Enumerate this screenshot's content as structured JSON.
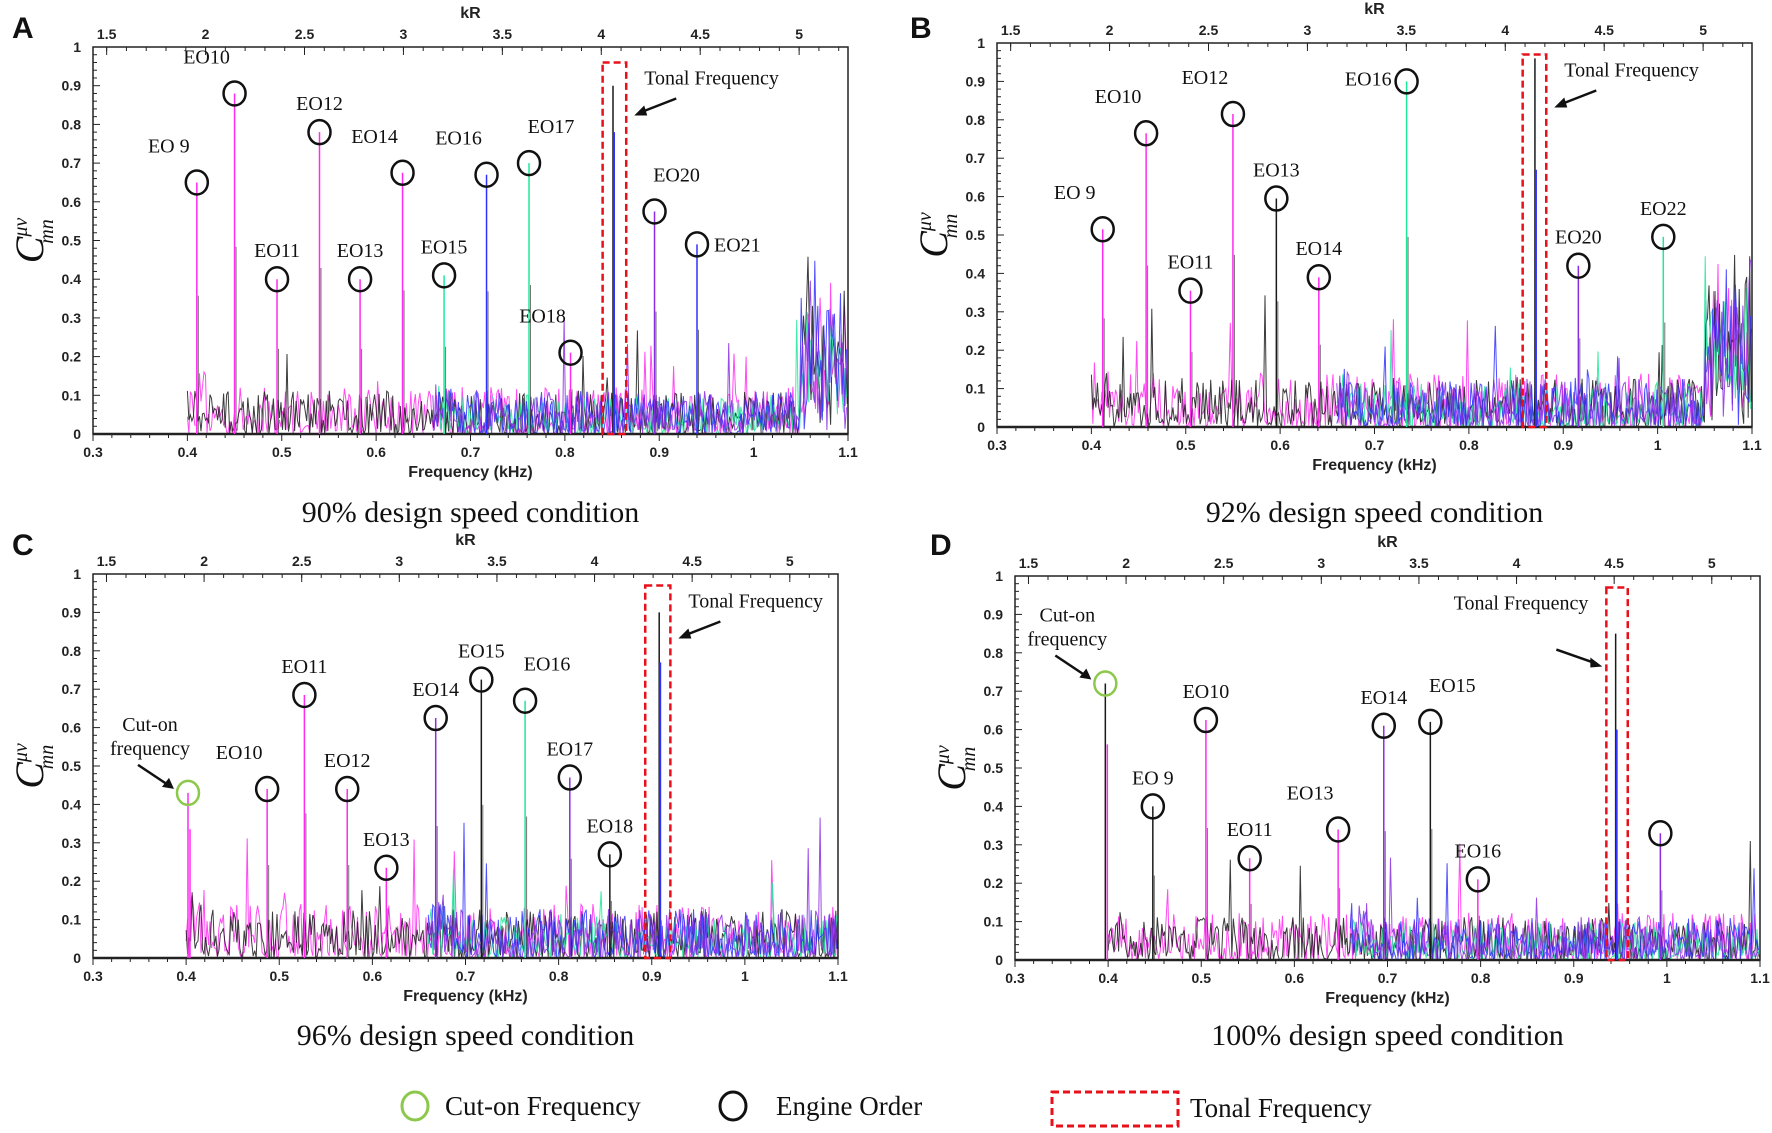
{
  "legend": {
    "cut_on": "Cut-on Frequency",
    "engine_order": "Engine Order",
    "tonal": "Tonal Frequency",
    "colors": {
      "cut_on": "#8cc84b",
      "engine_order": "#111111",
      "tonal": "#e8101a"
    }
  },
  "series_colors": {
    "magenta": "#ff2bf0",
    "black": "#1a1a1a",
    "green": "#1fe89a",
    "blue": "#3030ff",
    "purple": "#8a2be2"
  },
  "chart_data": [
    {
      "type": "line",
      "panel": "A",
      "caption": "90% design speed condition",
      "xlabel": "Frequency (kHz)",
      "x2label": "kR",
      "ylabel": "C_mn^μν",
      "xlim": [
        0.3,
        1.1
      ],
      "ylim": [
        0,
        1
      ],
      "xticks": [
        "0.3",
        "0.4",
        "0.5",
        "0.6",
        "0.7",
        "0.8",
        "0.9",
        "1",
        "1.1"
      ],
      "yticks": [
        "0",
        "0.1",
        "0.2",
        "0.3",
        "0.4",
        "0.5",
        "0.6",
        "0.7",
        "0.8",
        "0.9",
        "1"
      ],
      "kr_ticks": [
        "1.5",
        "2",
        "2.5",
        "3",
        "3.5",
        "4",
        "4.5",
        "5"
      ],
      "kr_per_khz": 4.77,
      "noise": {
        "start": 0.4,
        "late_start": 0.66,
        "level": 0.07,
        "bump_start": 1.05,
        "bump_level": 0.4
      },
      "peaks": [
        {
          "label": "EO 9",
          "f": 0.41,
          "v": 0.65,
          "color": "magenta",
          "pos": "above-left"
        },
        {
          "label": "EO10",
          "f": 0.45,
          "v": 0.88,
          "color": "magenta",
          "pos": "above-left"
        },
        {
          "label": "EO11",
          "f": 0.495,
          "v": 0.4,
          "color": "magenta",
          "pos": "above"
        },
        {
          "label": "EO12",
          "f": 0.54,
          "v": 0.78,
          "color": "magenta",
          "pos": "above"
        },
        {
          "label": "EO13",
          "f": 0.583,
          "v": 0.4,
          "color": "magenta",
          "pos": "above"
        },
        {
          "label": "EO14",
          "f": 0.628,
          "v": 0.675,
          "color": "magenta",
          "pos": "above-left"
        },
        {
          "label": "EO15",
          "f": 0.672,
          "v": 0.41,
          "color": "green",
          "pos": "above"
        },
        {
          "label": "EO16",
          "f": 0.717,
          "v": 0.67,
          "color": "blue",
          "pos": "above-left"
        },
        {
          "label": "EO17",
          "f": 0.762,
          "v": 0.7,
          "color": "green",
          "pos": "above-right"
        },
        {
          "label": "EO18",
          "f": 0.806,
          "v": 0.21,
          "color": "magenta",
          "pos": "above-left"
        },
        {
          "label": "EO20",
          "f": 0.895,
          "v": 0.575,
          "color": "purple",
          "pos": "above-right"
        },
        {
          "label": "EO21",
          "f": 0.94,
          "v": 0.49,
          "color": "blue",
          "pos": "right"
        }
      ],
      "cut_on": null,
      "tonal": {
        "label": "Tonal Frequency",
        "f_range": [
          0.84,
          0.865
        ],
        "f": 0.851,
        "v": 0.9,
        "v2": 0.78,
        "box_top": 0.96,
        "label_side": "right"
      }
    },
    {
      "type": "line",
      "panel": "B",
      "caption": "92% design speed condition",
      "xlabel": "Frequency (kHz)",
      "x2label": "kR",
      "ylabel": "C_mn^μν",
      "xlim": [
        0.3,
        1.1
      ],
      "ylim": [
        0,
        1
      ],
      "xticks": [
        "0.3",
        "0.4",
        "0.5",
        "0.6",
        "0.7",
        "0.8",
        "0.9",
        "1",
        "1.1"
      ],
      "yticks": [
        "0",
        "0.1",
        "0.2",
        "0.3",
        "0.4",
        "0.5",
        "0.6",
        "0.7",
        "0.8",
        "0.9",
        "1"
      ],
      "kr_ticks": [
        "1.5",
        "2",
        "2.5",
        "3",
        "3.5",
        "4",
        "4.5",
        "5"
      ],
      "kr_per_khz": 4.77,
      "noise": {
        "start": 0.4,
        "late_start": 0.66,
        "level": 0.08,
        "bump_start": 1.05,
        "bump_level": 0.4
      },
      "peaks": [
        {
          "label": "EO 9",
          "f": 0.412,
          "v": 0.515,
          "color": "magenta",
          "pos": "above-left"
        },
        {
          "label": "EO10",
          "f": 0.458,
          "v": 0.765,
          "color": "magenta",
          "pos": "above-left"
        },
        {
          "label": "EO11",
          "f": 0.505,
          "v": 0.355,
          "color": "magenta",
          "pos": "above"
        },
        {
          "label": "EO12",
          "f": 0.55,
          "v": 0.815,
          "color": "magenta",
          "pos": "above-left"
        },
        {
          "label": "EO13",
          "f": 0.596,
          "v": 0.595,
          "color": "black",
          "pos": "above"
        },
        {
          "label": "EO14",
          "f": 0.641,
          "v": 0.39,
          "color": "magenta",
          "pos": "above"
        },
        {
          "label": "EO16",
          "f": 0.734,
          "v": 0.9,
          "color": "green",
          "pos": "left"
        },
        {
          "label": "EO20",
          "f": 0.916,
          "v": 0.42,
          "color": "purple",
          "pos": "above"
        },
        {
          "label": "EO22",
          "f": 1.006,
          "v": 0.495,
          "color": "green",
          "pos": "above"
        }
      ],
      "cut_on": null,
      "tonal": {
        "label": "Tonal Frequency",
        "f_range": [
          0.857,
          0.882
        ],
        "f": 0.87,
        "v": 0.96,
        "v2": 0.67,
        "box_top": 0.97,
        "label_side": "right"
      }
    },
    {
      "type": "line",
      "panel": "C",
      "caption": "96% design speed condition",
      "xlabel": "Frequency (kHz)",
      "x2label": "kR",
      "ylabel": "C_mn^μν",
      "xlim": [
        0.3,
        1.1
      ],
      "ylim": [
        0,
        1
      ],
      "xticks": [
        "0.3",
        "0.4",
        "0.5",
        "0.6",
        "0.7",
        "0.8",
        "0.9",
        "1",
        "1.1"
      ],
      "yticks": [
        "0",
        "0.1",
        "0.2",
        "0.3",
        "0.4",
        "0.5",
        "0.6",
        "0.7",
        "0.8",
        "0.9",
        "1"
      ],
      "kr_ticks": [
        "1.5",
        "2",
        "2.5",
        "3",
        "3.5",
        "4",
        "4.5",
        "5"
      ],
      "kr_per_khz": 4.77,
      "noise": {
        "start": 0.4,
        "late_start": 0.66,
        "level": 0.08,
        "bump_start": 1.2,
        "bump_level": 0
      },
      "peaks": [
        {
          "label": "EO10",
          "f": 0.487,
          "v": 0.44,
          "color": "magenta",
          "pos": "above-left"
        },
        {
          "label": "EO11",
          "f": 0.527,
          "v": 0.685,
          "color": "magenta",
          "pos": "above"
        },
        {
          "label": "EO12",
          "f": 0.573,
          "v": 0.44,
          "color": "magenta",
          "pos": "above"
        },
        {
          "label": "EO13",
          "f": 0.615,
          "v": 0.235,
          "color": "magenta",
          "pos": "above"
        },
        {
          "label": "EO14",
          "f": 0.668,
          "v": 0.625,
          "color": "purple",
          "pos": "above"
        },
        {
          "label": "EO15",
          "f": 0.717,
          "v": 0.725,
          "color": "black",
          "pos": "above"
        },
        {
          "label": "EO16",
          "f": 0.764,
          "v": 0.67,
          "color": "green",
          "pos": "above-right"
        },
        {
          "label": "EO17",
          "f": 0.812,
          "v": 0.47,
          "color": "purple",
          "pos": "above"
        },
        {
          "label": "EO18",
          "f": 0.855,
          "v": 0.27,
          "color": "black",
          "pos": "above"
        }
      ],
      "cut_on": {
        "label_line1": "Cut-on",
        "label_line2": "frequency",
        "f": 0.402,
        "v": 0.43,
        "color": "magenta"
      },
      "tonal": {
        "label": "Tonal Frequency",
        "f_range": [
          0.893,
          0.92
        ],
        "f": 0.908,
        "v": 0.9,
        "v2": 0.77,
        "box_top": 0.97,
        "label_side": "right"
      }
    },
    {
      "type": "line",
      "panel": "D",
      "caption": "100% design speed condition",
      "xlabel": "Frequency (kHz)",
      "x2label": "kR",
      "ylabel": "C_mn^μν",
      "xlim": [
        0.3,
        1.1
      ],
      "ylim": [
        0,
        1
      ],
      "xticks": [
        "0.3",
        "0.4",
        "0.5",
        "0.6",
        "0.7",
        "0.8",
        "0.9",
        "1",
        "1.1"
      ],
      "yticks": [
        "0",
        "0.1",
        "0.2",
        "0.3",
        "0.4",
        "0.5",
        "0.6",
        "0.7",
        "0.8",
        "0.9",
        "1"
      ],
      "kr_ticks": [
        "1.5",
        "2",
        "2.5",
        "3",
        "3.5",
        "4",
        "4.5",
        "5"
      ],
      "kr_per_khz": 4.77,
      "noise": {
        "start": 0.4,
        "late_start": 0.66,
        "level": 0.07,
        "bump_start": 1.2,
        "bump_level": 0
      },
      "peaks": [
        {
          "label": "EO 9",
          "f": 0.448,
          "v": 0.4,
          "color": "black",
          "pos": "above"
        },
        {
          "label": "EO10",
          "f": 0.505,
          "v": 0.625,
          "color": "magenta",
          "pos": "above"
        },
        {
          "label": "EO11",
          "f": 0.552,
          "v": 0.265,
          "color": "magenta",
          "pos": "above"
        },
        {
          "label": "EO13",
          "f": 0.647,
          "v": 0.34,
          "color": "magenta",
          "pos": "above-left"
        },
        {
          "label": "EO14",
          "f": 0.696,
          "v": 0.61,
          "color": "purple",
          "pos": "above"
        },
        {
          "label": "EO15",
          "f": 0.746,
          "v": 0.62,
          "color": "black",
          "pos": "above-right"
        },
        {
          "label": "EO16",
          "f": 0.797,
          "v": 0.21,
          "color": "magenta",
          "pos": "above"
        },
        {
          "label": "",
          "f": 0.993,
          "v": 0.33,
          "color": "purple",
          "pos": "above"
        }
      ],
      "cut_on": {
        "label_line1": "Cut-on",
        "label_line2": "frequency",
        "f": 0.397,
        "v": 0.72,
        "color": "black"
      },
      "tonal": {
        "label": "Tonal Frequency",
        "f_range": [
          0.935,
          0.958
        ],
        "f": 0.945,
        "v": 0.85,
        "v2": 0.6,
        "box_top": 0.97,
        "label_side": "left"
      }
    }
  ]
}
